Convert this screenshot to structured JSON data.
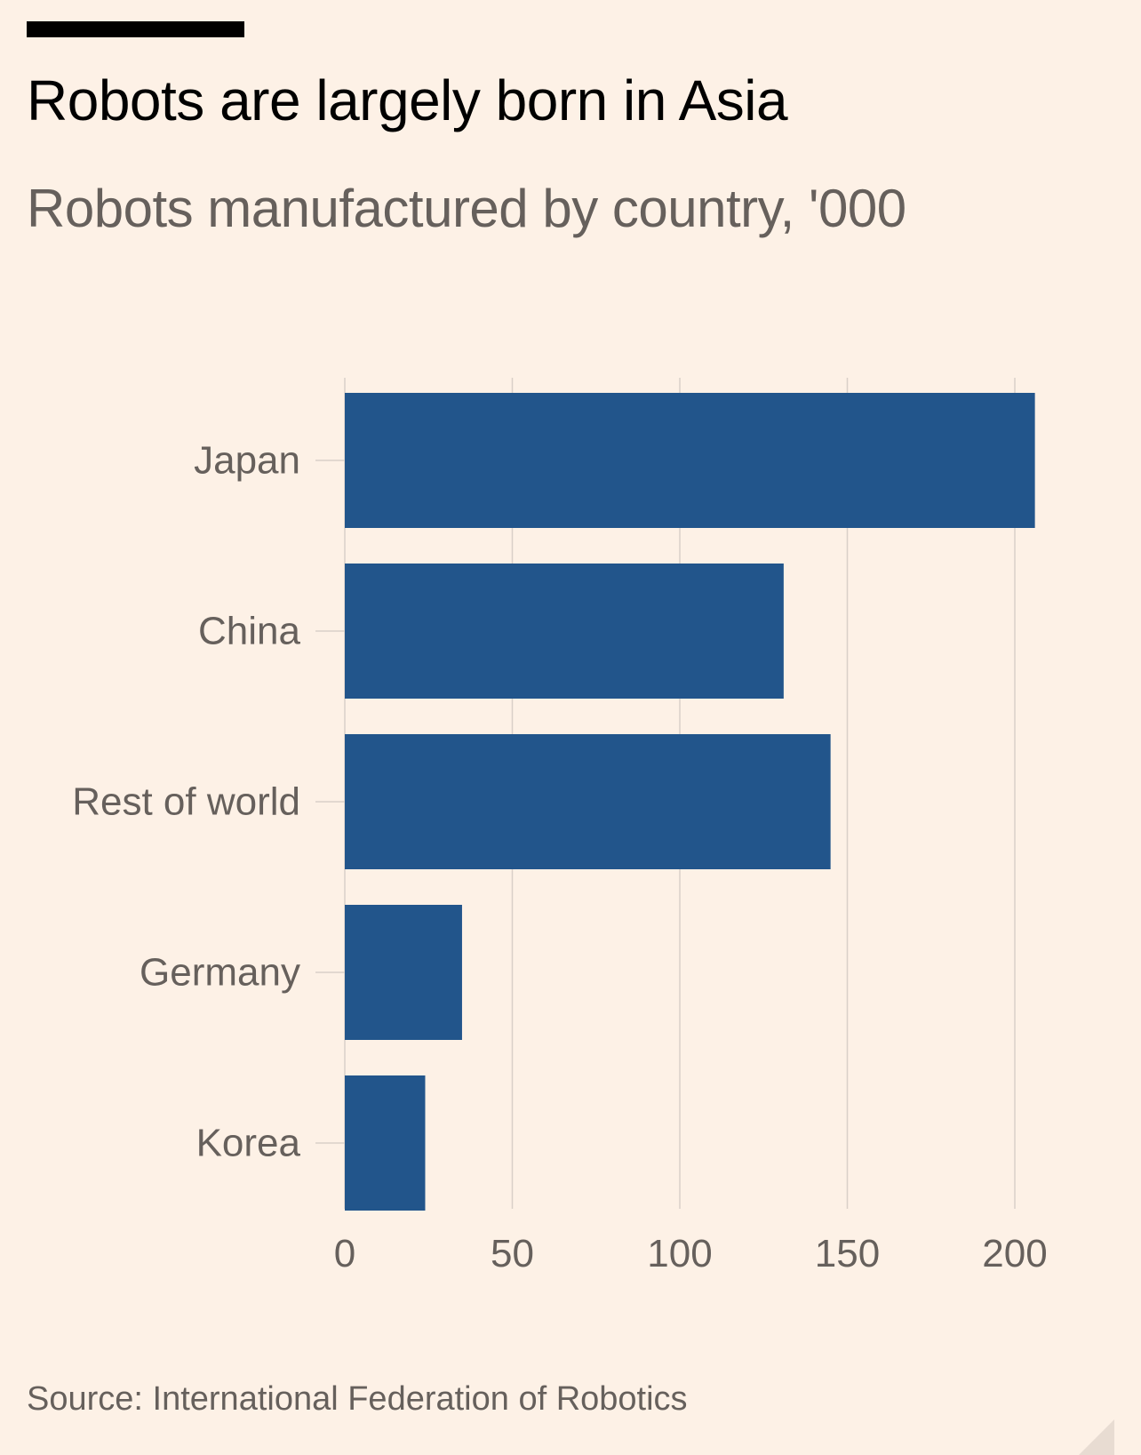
{
  "header": {
    "title": "Robots are largely born in Asia",
    "subtitle": "Robots manufactured by country, '000"
  },
  "footer": {
    "source": "Source: International Federation of Robotics"
  },
  "colors": {
    "background": "#fdf1e6",
    "bar": "#22558b",
    "grid": "#d9d0c8",
    "label": "#66605c",
    "title": "#000000"
  },
  "chart_data": {
    "type": "bar",
    "orientation": "horizontal",
    "title": "Robots are largely born in Asia",
    "subtitle": "Robots manufactured by country, '000",
    "categories": [
      "Japan",
      "China",
      "Rest of world",
      "Germany",
      "Korea"
    ],
    "values": [
      206,
      131,
      145,
      35,
      24
    ],
    "xlim": [
      0,
      210
    ],
    "xticks": [
      0,
      50,
      100,
      150,
      200
    ],
    "grid": true,
    "legend": "none"
  }
}
